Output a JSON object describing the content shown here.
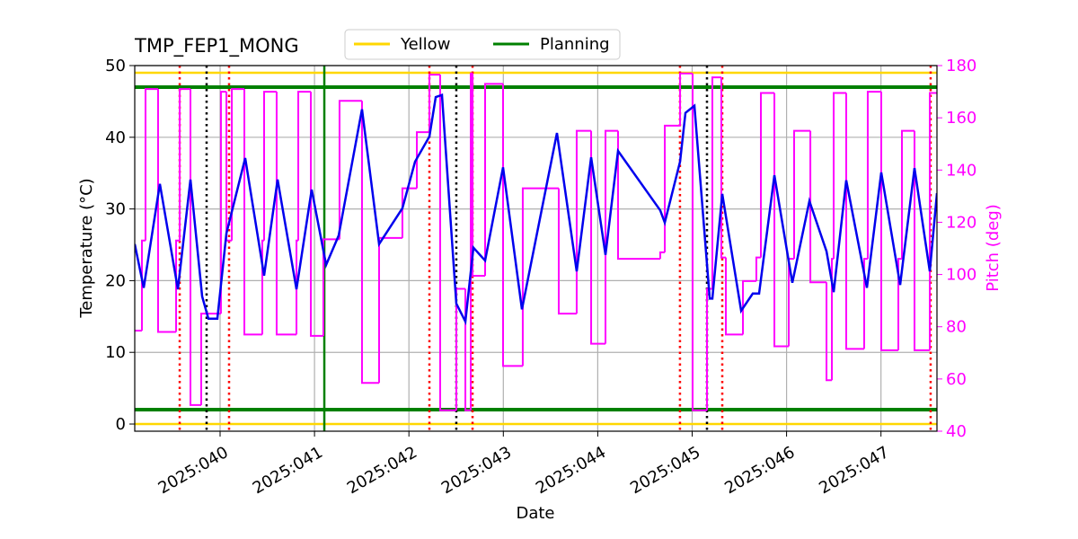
{
  "chart_data": {
    "type": "line",
    "title": "TMP_FEP1_MONG",
    "x_label": "Date",
    "y_label": "Temperature (°C)",
    "y2_label": "Pitch (deg)",
    "y2_color": "#ff00ff",
    "grid": true,
    "legend": "top",
    "xlim": [
      39.096,
      47.593
    ],
    "xticks": [
      {
        "value": 40,
        "label": "2025:040"
      },
      {
        "value": 41,
        "label": "2025:041"
      },
      {
        "value": 42,
        "label": "2025:042"
      },
      {
        "value": 43,
        "label": "2025:043"
      },
      {
        "value": 44,
        "label": "2025:044"
      },
      {
        "value": 45,
        "label": "2025:045"
      },
      {
        "value": 46,
        "label": "2025:046"
      },
      {
        "value": 47,
        "label": "2025:047"
      }
    ],
    "ylim": [
      -1,
      50
    ],
    "yticks": [
      0,
      10,
      20,
      30,
      40,
      50
    ],
    "y2lim": [
      40,
      180
    ],
    "y2ticks": [
      40,
      60,
      80,
      100,
      120,
      140,
      160,
      180
    ],
    "limit_lines": [
      {
        "name": "Yellow",
        "color": "#ffd700",
        "values": [
          0,
          49
        ]
      },
      {
        "name": "Planning",
        "color": "#008000",
        "values": [
          2,
          47
        ]
      }
    ],
    "vlines": [
      {
        "color": "#008000",
        "style": "solid",
        "x": [
          41.104
        ]
      },
      {
        "color": "#ff0000",
        "style": "dotted",
        "x": [
          39.572,
          40.095,
          42.217,
          42.674,
          44.871,
          45.319,
          47.526
        ]
      },
      {
        "color": "#000000",
        "style": "dotted",
        "x": [
          39.857,
          42.502,
          45.157
        ]
      }
    ],
    "series": [
      {
        "color": "#ff00ff",
        "axis": "y2",
        "step": "post",
        "x": [
          39.096,
          39.172,
          39.21,
          39.343,
          39.534,
          39.572,
          39.686,
          39.8,
          40.009,
          40.067,
          40.124,
          40.257,
          40.447,
          40.466,
          40.599,
          40.809,
          40.828,
          40.961,
          41.094,
          41.265,
          41.503,
          41.684,
          41.931,
          42.084,
          42.217,
          42.331,
          42.502,
          42.598,
          42.655,
          42.674,
          42.807,
          42.997,
          43.206,
          43.587,
          43.777,
          43.93,
          44.082,
          44.215,
          44.662,
          44.71,
          44.872,
          45.005,
          45.157,
          45.214,
          45.309,
          45.357,
          45.538,
          45.68,
          45.728,
          45.871,
          46.023,
          46.08,
          46.252,
          46.423,
          46.48,
          46.499,
          46.632,
          46.822,
          46.86,
          47.003,
          47.184,
          47.222,
          47.355,
          47.517,
          47.593
        ],
        "values": [
          78.5,
          113,
          171,
          78,
          113,
          171,
          50,
          85,
          170,
          113,
          171,
          77,
          113,
          170,
          77,
          113,
          170,
          76.5,
          113.5,
          166.5,
          58.5,
          114,
          133,
          154.5,
          176.5,
          48,
          94.5,
          48,
          177,
          99.5,
          173,
          65,
          133,
          85,
          155,
          73.5,
          155,
          106,
          108.5,
          157,
          177,
          48,
          94.5,
          175.5,
          106.5,
          77,
          97.5,
          106.5,
          169.5,
          72.5,
          106,
          155,
          97,
          59.5,
          106,
          169.5,
          71.5,
          106,
          170,
          71,
          106,
          155,
          71,
          169.5,
          169.5
        ]
      },
      {
        "color": "#0000ee",
        "x": [
          39.096,
          39.191,
          39.362,
          39.553,
          39.686,
          39.81,
          39.876,
          39.971,
          40.067,
          40.266,
          40.466,
          40.609,
          40.809,
          40.97,
          41.123,
          41.256,
          41.503,
          41.684,
          41.931,
          42.065,
          42.217,
          42.284,
          42.35,
          42.502,
          42.598,
          42.683,
          42.807,
          42.997,
          43.197,
          43.568,
          43.777,
          43.93,
          44.082,
          44.215,
          44.662,
          44.71,
          44.872,
          44.929,
          45.024,
          45.186,
          45.214,
          45.319,
          45.519,
          45.642,
          45.709,
          45.871,
          46.061,
          46.242,
          46.423,
          46.499,
          46.632,
          46.851,
          47.003,
          47.203,
          47.355,
          47.517,
          47.593
        ],
        "values": [
          25.1,
          19.0,
          33.5,
          18.8,
          34.1,
          17.8,
          14.7,
          14.7,
          26.6,
          37.1,
          20.7,
          34.1,
          18.8,
          32.7,
          22.2,
          26.3,
          43.9,
          25.1,
          30.1,
          36.6,
          40.1,
          45.6,
          45.9,
          16.8,
          14.3,
          24.6,
          22.8,
          35.8,
          16.0,
          40.6,
          21.3,
          37.2,
          23.6,
          38.1,
          29.8,
          28.1,
          36.6,
          43.4,
          44.4,
          17.5,
          17.5,
          32.1,
          15.8,
          18.2,
          18.2,
          34.7,
          19.7,
          31.1,
          24.1,
          18.4,
          34.0,
          19.0,
          35.1,
          19.4,
          35.7,
          21.3,
          32.2
        ]
      }
    ]
  }
}
